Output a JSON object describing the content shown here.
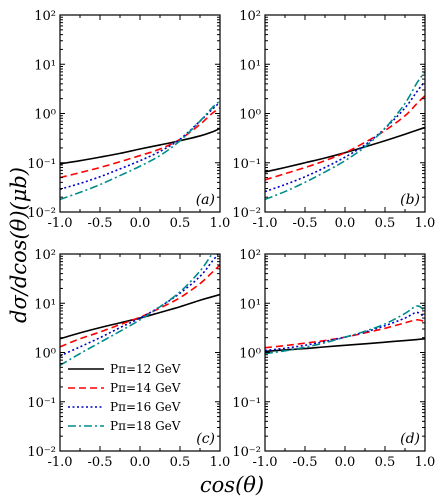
{
  "chart_data": {
    "type": "line",
    "xlabel": "cos(θ)",
    "ylabel": "dσ/dcos(θ)(μb)",
    "x_ticks": [
      "-1.0",
      "-0.5",
      "0.0",
      "0.5",
      "1.0"
    ],
    "y_ticks": [
      "10⁻²",
      "10⁻¹",
      "10⁰",
      "10¹",
      "10²"
    ],
    "xlim": [
      -1.0,
      1.0
    ],
    "ylim": [
      0.01,
      100
    ],
    "y_scale": "log",
    "legend": {
      "placement": "bottom-left of panel (c)",
      "entries": [
        "Pπ=12 GeV",
        "Pπ=14 GeV",
        "Pπ=16 GeV",
        "Pπ=18 GeV"
      ]
    },
    "series_styles": [
      {
        "color": "#000000",
        "dash": "solid"
      },
      {
        "color": "#ff0000",
        "dash": "dash"
      },
      {
        "color": "#0000cc",
        "dash": "dot"
      },
      {
        "color": "#008b8b",
        "dash": "dashdot"
      }
    ],
    "x": [
      -1.0,
      -0.75,
      -0.5,
      -0.25,
      0.0,
      0.25,
      0.5,
      0.75,
      0.9,
      1.0
    ],
    "panels": [
      {
        "label": "(a)",
        "series": [
          {
            "values": [
              0.095,
              0.11,
              0.13,
              0.155,
              0.19,
              0.23,
              0.28,
              0.35,
              0.42,
              0.5
            ]
          },
          {
            "values": [
              0.05,
              0.063,
              0.08,
              0.105,
              0.14,
              0.19,
              0.3,
              0.6,
              1.0,
              1.3
            ]
          },
          {
            "values": [
              0.029,
              0.038,
              0.052,
              0.075,
              0.11,
              0.17,
              0.3,
              0.7,
              1.2,
              1.7
            ]
          },
          {
            "values": [
              0.018,
              0.025,
              0.036,
              0.055,
              0.085,
              0.14,
              0.28,
              0.7,
              1.3,
              1.8
            ]
          }
        ]
      },
      {
        "label": "(b)",
        "series": [
          {
            "values": [
              0.065,
              0.08,
              0.1,
              0.125,
              0.16,
              0.21,
              0.28,
              0.38,
              0.46,
              0.52
            ]
          },
          {
            "values": [
              0.045,
              0.06,
              0.08,
              0.11,
              0.16,
              0.26,
              0.45,
              0.9,
              1.6,
              2.3
            ]
          },
          {
            "values": [
              0.026,
              0.036,
              0.052,
              0.08,
              0.13,
              0.23,
              0.5,
              1.3,
              2.8,
              4.5
            ]
          },
          {
            "values": [
              0.018,
              0.026,
              0.04,
              0.065,
              0.11,
              0.21,
              0.5,
              1.6,
              4.2,
              7.0
            ]
          }
        ]
      },
      {
        "label": "(c)",
        "series": [
          {
            "values": [
              1.9,
              2.5,
              3.2,
              4.0,
              5.0,
              6.5,
              8.5,
              11.5,
              13.5,
              15.0
            ]
          },
          {
            "values": [
              1.3,
              1.9,
              2.6,
              3.7,
              5.2,
              8.0,
              13.0,
              25.0,
              42.0,
              60.0
            ]
          },
          {
            "values": [
              0.85,
              1.3,
              2.0,
              3.2,
              5.0,
              8.5,
              16.0,
              35.0,
              70.0,
              110.0
            ]
          },
          {
            "values": [
              0.55,
              0.95,
              1.6,
              2.7,
              4.6,
              8.5,
              17.0,
              45.0,
              100.0,
              170.0
            ]
          }
        ]
      },
      {
        "label": "(d)",
        "series": [
          {
            "values": [
              1.05,
              1.13,
              1.2,
              1.3,
              1.4,
              1.5,
              1.62,
              1.75,
              1.83,
              1.9
            ]
          },
          {
            "values": [
              1.25,
              1.38,
              1.55,
              1.75,
              2.05,
              2.5,
              3.1,
              4.0,
              4.6,
              4.2
            ]
          },
          {
            "values": [
              1.1,
              1.22,
              1.4,
              1.68,
              2.05,
              2.6,
              3.5,
              5.0,
              6.5,
              5.0
            ]
          },
          {
            "values": [
              0.95,
              1.08,
              1.28,
              1.58,
              2.05,
              2.7,
              3.8,
              6.2,
              8.8,
              7.0
            ]
          }
        ]
      }
    ]
  }
}
